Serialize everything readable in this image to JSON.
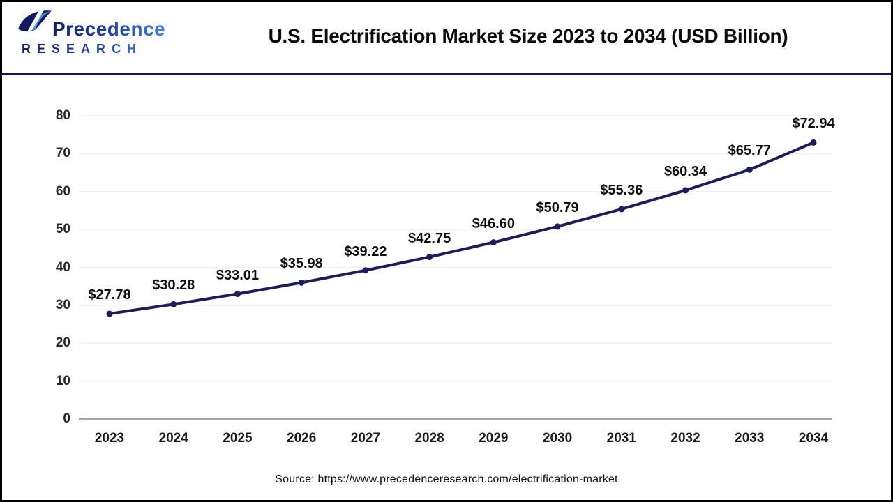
{
  "header": {
    "title": "U.S. Electrification Market Size 2023 to 2034 (USD Billion)",
    "logo": {
      "brand": "Precedence",
      "sub": "RESEARCH",
      "color_dark": "#141e63",
      "color_light": "#3b82e8"
    }
  },
  "chart_data": {
    "type": "line",
    "title": "U.S. Electrification Market Size 2023 to 2034 (USD Billion)",
    "categories": [
      "2023",
      "2024",
      "2025",
      "2026",
      "2027",
      "2028",
      "2029",
      "2030",
      "2031",
      "2032",
      "2033",
      "2034"
    ],
    "values": [
      27.78,
      30.28,
      33.01,
      35.98,
      39.22,
      42.75,
      46.6,
      50.79,
      55.36,
      60.34,
      65.77,
      72.94
    ],
    "labels": [
      "$27.78",
      "$30.28",
      "$33.01",
      "$35.98",
      "$39.22",
      "$42.75",
      "$46.60",
      "$50.79",
      "$55.36",
      "$60.34",
      "$65.77",
      "$72.94"
    ],
    "xlabel": "",
    "ylabel": "",
    "ylim": [
      0,
      80
    ],
    "ytick_step": 10,
    "yticks": [
      0,
      10,
      20,
      30,
      40,
      50,
      60,
      70,
      80
    ],
    "grid": true,
    "legend": "none",
    "line_color": "#1b1b5e",
    "gridline_color": "#f2f2f2",
    "baseline_color": "#a6a6a6",
    "marker": "circle"
  },
  "footer": {
    "source": "Source: https://www.precedenceresearch.com/electrification-market"
  }
}
